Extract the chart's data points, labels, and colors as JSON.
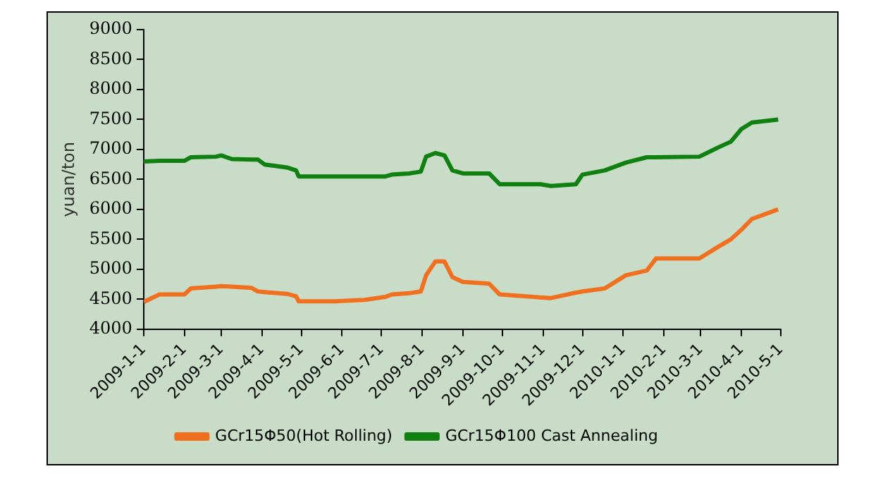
{
  "chart_data": {
    "type": "line",
    "ylabel": "yuan/ton",
    "x": [
      "2009-01-01",
      "2009-01-13",
      "2009-02-01",
      "2009-02-06",
      "2009-02-25",
      "2009-03-01",
      "2009-03-09",
      "2009-03-24",
      "2009-03-29",
      "2009-04-03",
      "2009-04-20",
      "2009-04-27",
      "2009-04-29",
      "2009-05-27",
      "2009-06-18",
      "2009-07-04",
      "2009-07-09",
      "2009-07-22",
      "2009-07-31",
      "2009-08-04",
      "2009-08-11",
      "2009-08-18",
      "2009-08-24",
      "2009-09-01",
      "2009-09-21",
      "2009-09-29",
      "2009-10-30",
      "2009-11-07",
      "2009-11-26",
      "2009-12-01",
      "2009-12-18",
      "2010-01-03",
      "2010-01-19",
      "2010-01-26",
      "2010-02-28",
      "2010-03-14",
      "2010-03-24",
      "2010-04-01",
      "2010-04-09",
      "2010-04-29"
    ],
    "series": [
      {
        "name": "GCr15Φ50(Hot Rolling)",
        "color": "#f07020",
        "values": [
          4455,
          4580,
          4580,
          4680,
          4710,
          4720,
          4710,
          4690,
          4630,
          4620,
          4590,
          4550,
          4465,
          4465,
          4490,
          4540,
          4580,
          4600,
          4630,
          4900,
          5130,
          5130,
          4870,
          4790,
          4760,
          4580,
          4530,
          4520,
          4610,
          4630,
          4680,
          4900,
          4980,
          5180,
          5180,
          5370,
          5500,
          5660,
          5840,
          6000
        ]
      },
      {
        "name": "GCr15Φ100 Cast Annealing",
        "color": "#108010",
        "values": [
          6800,
          6810,
          6810,
          6870,
          6880,
          6900,
          6840,
          6830,
          6830,
          6750,
          6700,
          6650,
          6550,
          6550,
          6550,
          6550,
          6580,
          6600,
          6630,
          6880,
          6940,
          6900,
          6650,
          6600,
          6600,
          6420,
          6420,
          6390,
          6420,
          6580,
          6650,
          6780,
          6870,
          6870,
          6880,
          7030,
          7130,
          7340,
          7450,
          7500
        ]
      }
    ],
    "xlim": [
      "2009-01-01",
      "2010-05-01"
    ],
    "xticks": [
      {
        "value": "2009-01-01",
        "label": "2009-1-1"
      },
      {
        "value": "2009-02-01",
        "label": "2009-2-1"
      },
      {
        "value": "2009-03-01",
        "label": "2009-3-1"
      },
      {
        "value": "2009-04-01",
        "label": "2009-4-1"
      },
      {
        "value": "2009-05-01",
        "label": "2009-5-1"
      },
      {
        "value": "2009-06-01",
        "label": "2009-6-1"
      },
      {
        "value": "2009-07-01",
        "label": "2009-7-1"
      },
      {
        "value": "2009-08-01",
        "label": "2009-8-1"
      },
      {
        "value": "2009-09-01",
        "label": "2009-9-1"
      },
      {
        "value": "2009-10-01",
        "label": "2009-10-1"
      },
      {
        "value": "2009-11-01",
        "label": "2009-11-1"
      },
      {
        "value": "2009-12-01",
        "label": "2009-12-1"
      },
      {
        "value": "2010-01-01",
        "label": "2010-1-1"
      },
      {
        "value": "2010-02-01",
        "label": "2010-2-1"
      },
      {
        "value": "2010-03-01",
        "label": "2010-3-1"
      },
      {
        "value": "2010-04-01",
        "label": "2010-4-1"
      },
      {
        "value": "2010-05-01",
        "label": "2010-5-1"
      }
    ],
    "ylim": [
      4000,
      9000
    ],
    "yticks": [
      4000,
      4500,
      5000,
      5500,
      6000,
      6500,
      7000,
      7500,
      8000,
      8500,
      9000
    ],
    "grid": false,
    "legend": "bottom",
    "marker": "none",
    "line_style": "solid"
  }
}
